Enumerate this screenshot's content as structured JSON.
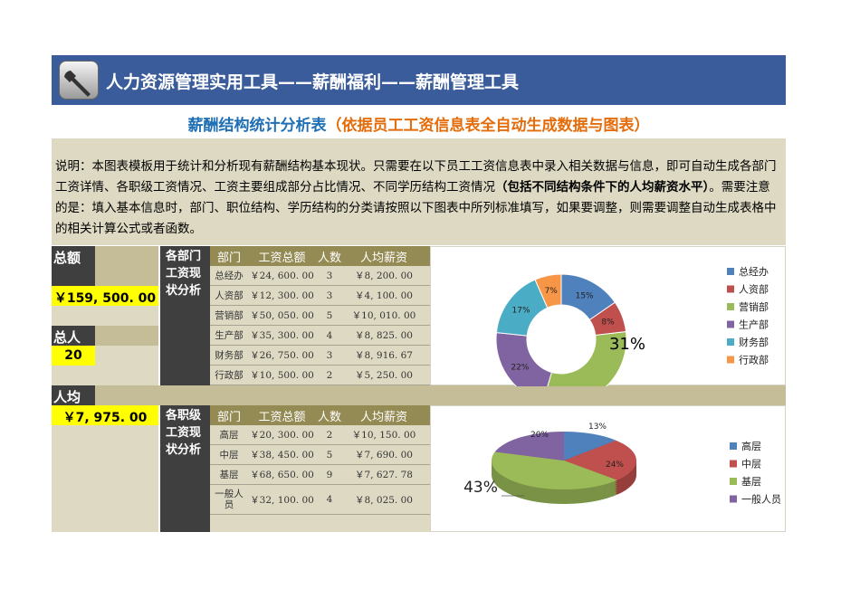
{
  "header": {
    "title": "人力资源管理实用工具——薪酬福利——薪酬管理工具",
    "icon": "wrench-icon"
  },
  "subtitle": {
    "main": "薪酬结构统计分析表",
    "note": "（依据员工工资信息表全自动生成数据与图表）"
  },
  "description": {
    "part1": "说明：本图表模板用于统计和分析现有薪酬结构基本现状。只需要在以下员工工资信息表中录入相关数据与信息，即可自动生成各部门工资详情、各职级工资情况、工资主要组成部分占比情况、不同学历结构工资情况",
    "bold": "（包括不同结构条件下的人均薪资水平）",
    "part2": "。需要注意的是：填入基本信息时，部门、职位结构、学历结构的分类请按照以下图表中所列标准填写，如果要调整，则需要调整自动生成表格中的相关计算公式或者函数。"
  },
  "summary": {
    "total_label": "总额",
    "total_value": "￥159, 500. 00",
    "count_label": "总人数",
    "count_value": "20",
    "avg_label": "人均",
    "avg_value": "￥7, 975. 00"
  },
  "dept": {
    "label": "各部门工资现状分析",
    "headers": [
      "部门",
      "工资总额",
      "人数",
      "人均薪资"
    ],
    "rows": [
      [
        "总经办",
        "￥24, 600. 00",
        "3",
        "￥8, 200. 00"
      ],
      [
        "人资部",
        "￥12, 300. 00",
        "3",
        "￥4, 100. 00"
      ],
      [
        "营销部",
        "￥50, 050. 00",
        "5",
        "￥10, 010. 00"
      ],
      [
        "生产部",
        "￥35, 300. 00",
        "4",
        "￥8, 825. 00"
      ],
      [
        "财务部",
        "￥26, 750. 00",
        "3",
        "￥8, 916. 67"
      ],
      [
        "行政部",
        "￥10, 500. 00",
        "2",
        "￥5, 250. 00"
      ]
    ]
  },
  "level": {
    "label": "各职级工资现状分析",
    "headers": [
      "部门",
      "工资总额",
      "人数",
      "人均薪资"
    ],
    "rows": [
      [
        "高层",
        "￥20, 300. 00",
        "2",
        "￥10, 150. 00"
      ],
      [
        "中层",
        "￥38, 450. 00",
        "5",
        "￥7, 690. 00"
      ],
      [
        "基层",
        "￥68, 650. 00",
        "9",
        "￥7, 627. 78"
      ],
      [
        "一般人员",
        "￥32, 100. 00",
        "4",
        "￥8, 025. 00"
      ]
    ]
  },
  "colors": [
    "#4f81bd",
    "#c0504d",
    "#9bbb59",
    "#8064a2",
    "#4bacc6",
    "#f79646"
  ],
  "chart_data": [
    {
      "type": "pie",
      "style": "doughnut",
      "categories": [
        "总经办",
        "人资部",
        "营销部",
        "生产部",
        "财务部",
        "行政部"
      ],
      "values": [
        24600,
        12300,
        50050,
        35300,
        26750,
        10500
      ],
      "labels": [
        "15%",
        "8%",
        "31%",
        "22%",
        "17%",
        "7%"
      ],
      "legend": "right"
    },
    {
      "type": "pie",
      "style": "3d",
      "categories": [
        "高层",
        "中层",
        "基层",
        "一般人员"
      ],
      "values": [
        20300,
        38450,
        68650,
        32100
      ],
      "labels": [
        "13%",
        "24%",
        "43%",
        "20%"
      ],
      "legend": "right"
    }
  ]
}
